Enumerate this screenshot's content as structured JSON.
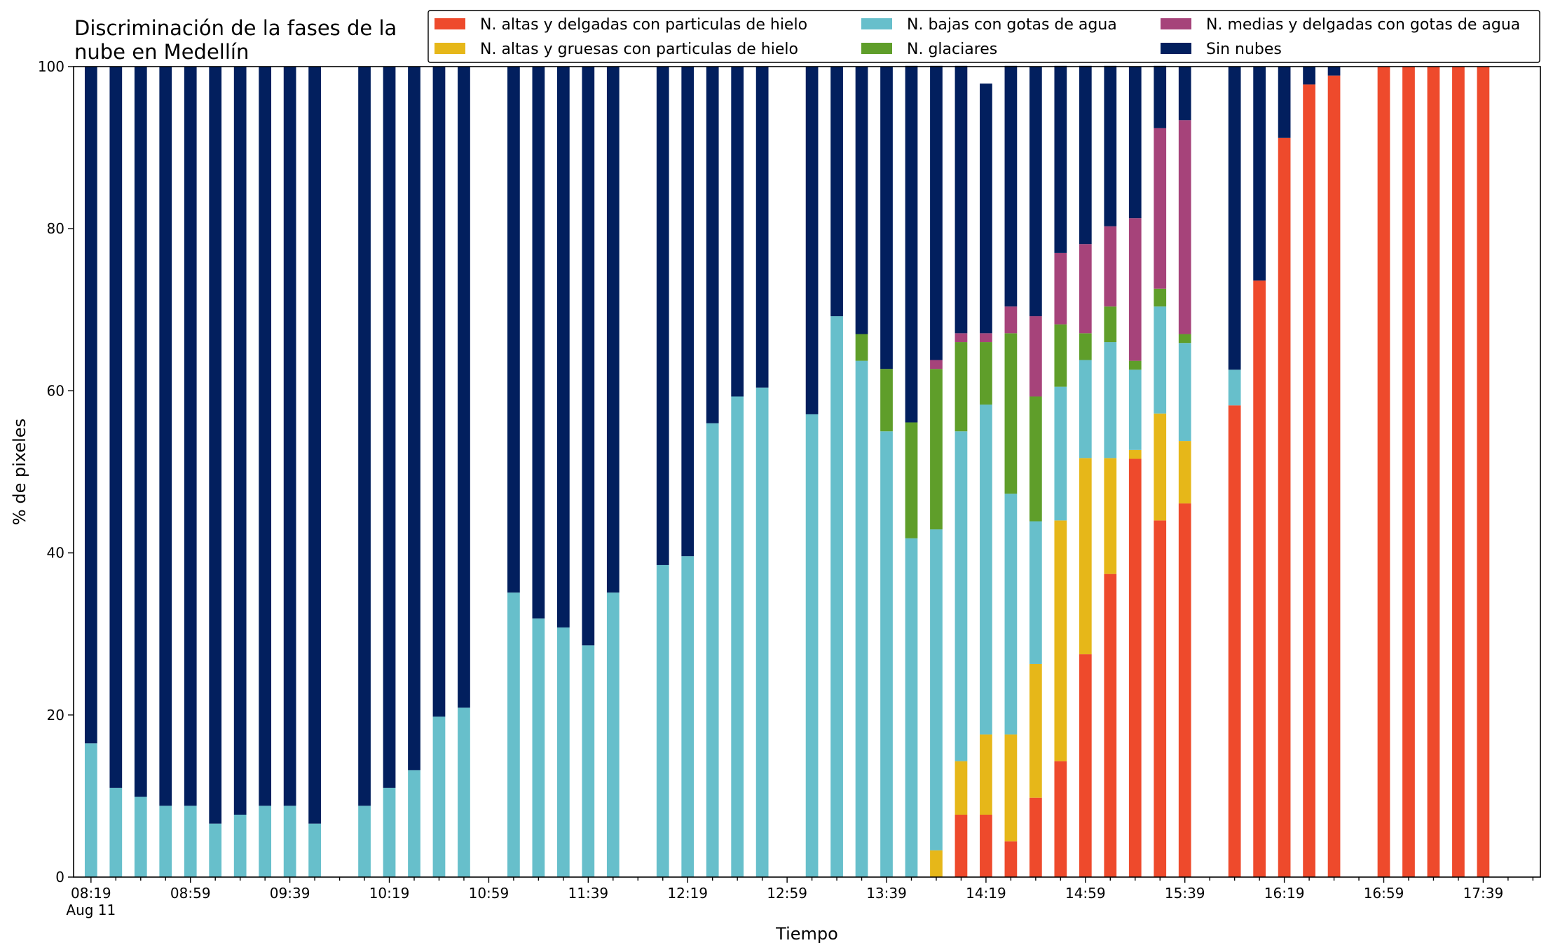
{
  "chart_data": {
    "type": "bar",
    "stacked": true,
    "title": "Discriminación de la fases de la\nnube en Medellín",
    "xlabel": "Tiempo",
    "ylabel": "% de pixeles",
    "ylim": [
      0,
      100
    ],
    "yticks": [
      0,
      20,
      40,
      60,
      80,
      100
    ],
    "xlim": [
      "08:12",
      "18:02"
    ],
    "x_tick_labels": [
      {
        "time": "08:19",
        "label": "08:19",
        "sublabel": "Aug 11"
      },
      {
        "time": "08:59",
        "label": "08:59"
      },
      {
        "time": "09:39",
        "label": "09:39"
      },
      {
        "time": "10:19",
        "label": "10:19"
      },
      {
        "time": "10:59",
        "label": "10:59"
      },
      {
        "time": "11:39",
        "label": "11:39"
      },
      {
        "time": "12:19",
        "label": "12:19"
      },
      {
        "time": "12:59",
        "label": "12:59"
      },
      {
        "time": "13:39",
        "label": "13:39"
      },
      {
        "time": "14:19",
        "label": "14:19"
      },
      {
        "time": "14:59",
        "label": "14:59"
      },
      {
        "time": "15:39",
        "label": "15:39"
      },
      {
        "time": "16:19",
        "label": "16:19"
      },
      {
        "time": "16:59",
        "label": "16:59"
      },
      {
        "time": "17:39",
        "label": "17:39"
      }
    ],
    "grid": false,
    "legend_position": "top-right",
    "x": [
      "08:19",
      "08:29",
      "08:39",
      "08:49",
      "08:59",
      "09:09",
      "09:19",
      "09:29",
      "09:39",
      "09:49",
      "10:09",
      "10:19",
      "10:29",
      "10:39",
      "10:49",
      "11:09",
      "11:19",
      "11:29",
      "11:39",
      "11:49",
      "12:09",
      "12:19",
      "12:29",
      "12:39",
      "12:49",
      "13:09",
      "13:19",
      "13:29",
      "13:39",
      "13:49",
      "13:59",
      "14:09",
      "14:19",
      "14:29",
      "14:39",
      "14:49",
      "14:59",
      "15:09",
      "15:19",
      "15:29",
      "15:39",
      "15:59",
      "16:09",
      "16:19",
      "16:29",
      "16:39",
      "16:59",
      "17:09",
      "17:19",
      "17:29",
      "17:39"
    ],
    "series": [
      {
        "name": "N. altas y delgadas con particulas de hielo",
        "color": "#ee4a2c",
        "values": [
          0,
          0,
          0,
          0,
          0,
          0,
          0,
          0,
          0,
          0,
          0,
          0,
          0,
          0,
          0,
          0,
          0,
          0,
          0,
          0,
          0,
          0,
          0,
          0,
          0,
          0,
          0,
          0,
          0,
          0,
          0,
          7.7,
          7.7,
          4.4,
          9.8,
          14.3,
          27.5,
          37.4,
          51.6,
          44.0,
          46.1,
          58.2,
          73.6,
          91.2,
          97.8,
          98.9,
          100,
          100,
          100,
          100,
          100
        ]
      },
      {
        "name": "N. altas y gruesas con particulas de hielo",
        "color": "#e6b719",
        "values": [
          0,
          0,
          0,
          0,
          0,
          0,
          0,
          0,
          0,
          0,
          0,
          0,
          0,
          0,
          0,
          0,
          0,
          0,
          0,
          0,
          0,
          0,
          0,
          0,
          0,
          0,
          0,
          0,
          0,
          0,
          3.3,
          6.6,
          9.9,
          13.2,
          16.5,
          29.7,
          24.2,
          14.3,
          1.1,
          13.2,
          7.7,
          0,
          0,
          0,
          0,
          0,
          0,
          0,
          0,
          0,
          0
        ]
      },
      {
        "name": "N. bajas con gotas de agua",
        "color": "#67bfcb",
        "values": [
          16.5,
          11.0,
          9.9,
          8.8,
          8.8,
          6.6,
          7.7,
          8.8,
          8.8,
          6.6,
          8.8,
          11.0,
          13.2,
          19.8,
          20.9,
          35.1,
          31.9,
          30.8,
          28.6,
          35.1,
          38.5,
          39.6,
          56.0,
          59.3,
          60.4,
          57.1,
          69.2,
          63.7,
          55.0,
          41.8,
          39.6,
          40.7,
          40.7,
          29.7,
          17.6,
          16.5,
          12.1,
          14.3,
          9.9,
          13.2,
          12.1,
          4.4,
          0,
          0,
          0,
          0,
          0,
          0,
          0,
          0,
          0
        ]
      },
      {
        "name": "N. glaciares",
        "color": "#5f9e2a",
        "values": [
          0,
          0,
          0,
          0,
          0,
          0,
          0,
          0,
          0,
          0,
          0,
          0,
          0,
          0,
          0,
          0,
          0,
          0,
          0,
          0,
          0,
          0,
          0,
          0,
          0,
          0,
          0,
          3.3,
          7.7,
          14.3,
          19.8,
          11.0,
          7.7,
          19.8,
          15.4,
          7.7,
          3.3,
          4.4,
          1.1,
          2.2,
          1.1,
          0,
          0,
          0,
          0,
          0,
          0,
          0,
          0,
          0,
          0
        ]
      },
      {
        "name": "N. medias y delgadas con gotas de agua",
        "color": "#a6437a",
        "values": [
          0,
          0,
          0,
          0,
          0,
          0,
          0,
          0,
          0,
          0,
          0,
          0,
          0,
          0,
          0,
          0,
          0,
          0,
          0,
          0,
          0,
          0,
          0,
          0,
          0,
          0,
          0,
          0,
          0,
          0,
          1.1,
          1.1,
          1.1,
          3.3,
          9.9,
          8.8,
          11.0,
          9.9,
          17.6,
          19.8,
          26.4,
          0,
          0,
          0,
          0,
          0,
          0,
          0,
          0,
          0,
          0
        ]
      },
      {
        "name": "Sin nubes",
        "color": "#021f5e",
        "values": [
          83.5,
          89.0,
          90.1,
          91.2,
          91.2,
          93.4,
          92.3,
          91.2,
          91.2,
          93.4,
          91.2,
          89.0,
          86.8,
          80.2,
          79.1,
          64.9,
          68.1,
          69.2,
          71.4,
          64.9,
          61.5,
          60.4,
          44.0,
          40.7,
          39.6,
          42.9,
          30.8,
          33.0,
          37.3,
          44.0,
          36.3,
          33.0,
          30.8,
          29.7,
          30.8,
          23.1,
          22.0,
          19.8,
          18.7,
          7.7,
          6.6,
          37.4,
          26.4,
          8.8,
          2.2,
          1.1,
          0,
          0,
          0,
          0,
          0
        ]
      }
    ]
  }
}
